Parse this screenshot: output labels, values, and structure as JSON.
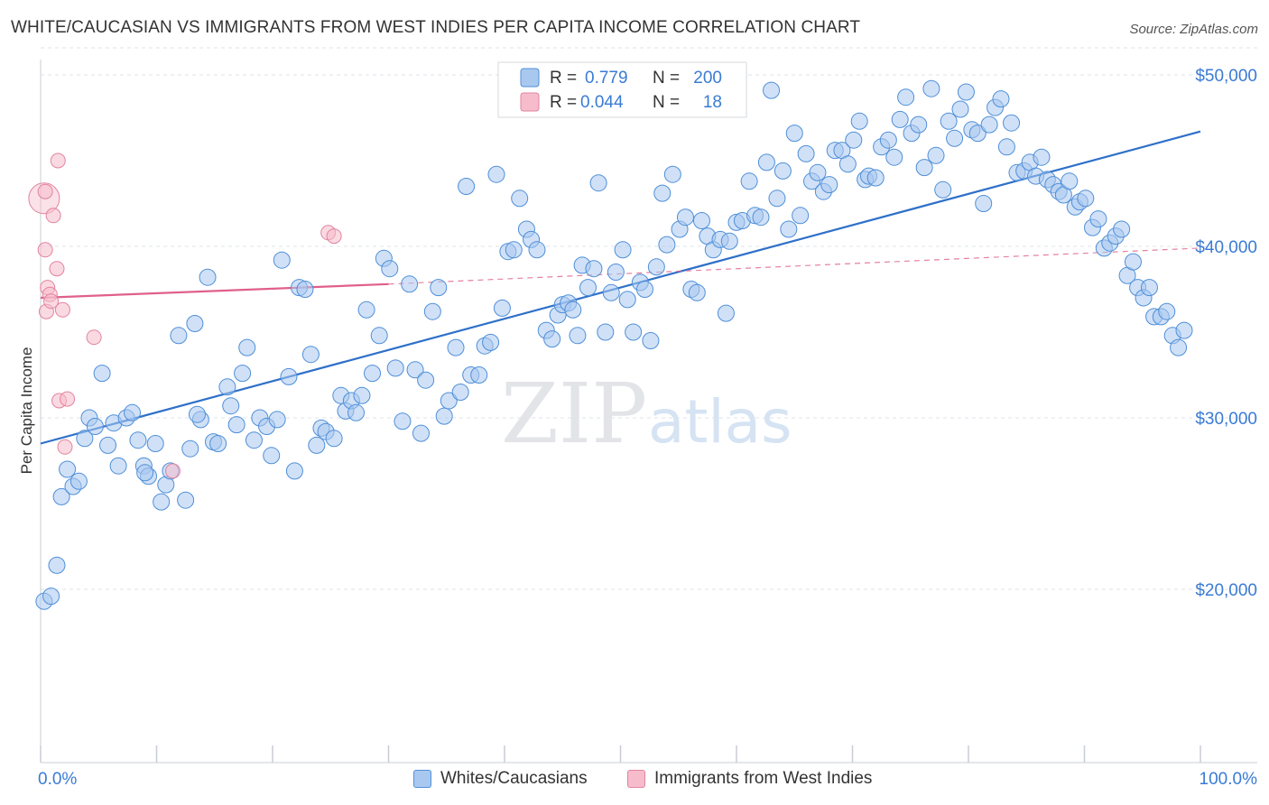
{
  "title": "WHITE/CAUCASIAN VS IMMIGRANTS FROM WEST INDIES PER CAPITA INCOME CORRELATION CHART",
  "source": "Source: ZipAtlas.com",
  "watermark": {
    "zip": "ZIP",
    "atlas": "atlas"
  },
  "colors": {
    "blue_fill": "#a9c8f0",
    "blue_stroke": "#4f8fd8",
    "blue_line": "#2e70c9",
    "pink_fill": "#f6bccb",
    "pink_stroke": "#e283a0",
    "pink_line": "#e0608a",
    "axis_label": "#3a7bd5",
    "grid": "#dde3ea"
  },
  "legend": {
    "rows": [
      {
        "r_label": "R =",
        "r_value": "0.779",
        "n_label": "N =",
        "n_value": "200",
        "series": "blue"
      },
      {
        "r_label": "R =",
        "r_value": "0.044",
        "n_label": "N =",
        "n_value": "18",
        "series": "pink"
      }
    ]
  },
  "bottom_legend": [
    {
      "label": "Whites/Caucasians",
      "series": "blue"
    },
    {
      "label": "Immigrants from West Indies",
      "series": "pink"
    }
  ],
  "chart_data": {
    "type": "scatter",
    "xlabel": "",
    "ylabel": "Per Capita Income",
    "xlim": [
      0,
      100
    ],
    "ylim": [
      10000,
      52000
    ],
    "x_tick_labels": [
      "0.0%",
      "100.0%"
    ],
    "y_ticks": [
      {
        "value": 20000,
        "label": "$20,000"
      },
      {
        "value": 30000,
        "label": "$30,000"
      },
      {
        "value": 40000,
        "label": "$40,000"
      },
      {
        "value": 50000,
        "label": "$50,000"
      }
    ],
    "grid": true,
    "series": [
      {
        "name": "Whites/Caucasians",
        "color": "blue",
        "trend": {
          "x1": 0,
          "y1": 28500,
          "x2": 100,
          "y2": 46700
        },
        "points": [
          [
            0.3,
            19300
          ],
          [
            0.9,
            19600
          ],
          [
            1.4,
            21400
          ],
          [
            1.8,
            25400
          ],
          [
            2.3,
            27000
          ],
          [
            2.8,
            26000
          ],
          [
            3.3,
            26300
          ],
          [
            3.8,
            28800
          ],
          [
            4.2,
            30000
          ],
          [
            4.7,
            29500
          ],
          [
            5.3,
            32600
          ],
          [
            5.8,
            28400
          ],
          [
            6.3,
            29700
          ],
          [
            6.7,
            27200
          ],
          [
            7.4,
            30000
          ],
          [
            7.9,
            30300
          ],
          [
            8.4,
            28700
          ],
          [
            8.9,
            27200
          ],
          [
            9.3,
            26600
          ],
          [
            9.9,
            28500
          ],
          [
            10.4,
            25100
          ],
          [
            10.8,
            26100
          ],
          [
            11.2,
            26900
          ],
          [
            11.9,
            34800
          ],
          [
            12.5,
            25200
          ],
          [
            12.9,
            28200
          ],
          [
            13.3,
            35500
          ],
          [
            13.8,
            29900
          ],
          [
            14.4,
            38200
          ],
          [
            14.9,
            28600
          ],
          [
            15.3,
            28500
          ],
          [
            16.1,
            31800
          ],
          [
            16.4,
            30700
          ],
          [
            16.9,
            29600
          ],
          [
            17.4,
            32600
          ],
          [
            17.8,
            34100
          ],
          [
            18.4,
            28700
          ],
          [
            18.9,
            30000
          ],
          [
            19.5,
            29500
          ],
          [
            19.9,
            27800
          ],
          [
            20.4,
            29900
          ],
          [
            20.8,
            39200
          ],
          [
            21.4,
            32400
          ],
          [
            21.9,
            26900
          ],
          [
            22.3,
            37600
          ],
          [
            22.8,
            37500
          ],
          [
            23.3,
            33700
          ],
          [
            23.8,
            28400
          ],
          [
            24.2,
            29400
          ],
          [
            24.6,
            29200
          ],
          [
            25.3,
            28800
          ],
          [
            25.9,
            31300
          ],
          [
            26.3,
            30400
          ],
          [
            26.8,
            31000
          ],
          [
            27.2,
            30300
          ],
          [
            27.7,
            31300
          ],
          [
            28.1,
            36300
          ],
          [
            28.6,
            32600
          ],
          [
            29.2,
            34800
          ],
          [
            29.6,
            39300
          ],
          [
            30.1,
            38700
          ],
          [
            30.6,
            32900
          ],
          [
            31.2,
            29800
          ],
          [
            31.8,
            37800
          ],
          [
            32.3,
            32800
          ],
          [
            32.8,
            29100
          ],
          [
            33.2,
            32200
          ],
          [
            33.8,
            36200
          ],
          [
            34.3,
            37600
          ],
          [
            34.8,
            30100
          ],
          [
            35.2,
            31000
          ],
          [
            35.8,
            34100
          ],
          [
            36.2,
            31500
          ],
          [
            36.7,
            43500
          ],
          [
            37.1,
            32500
          ],
          [
            37.8,
            32500
          ],
          [
            38.3,
            34200
          ],
          [
            38.8,
            34400
          ],
          [
            39.3,
            44200
          ],
          [
            39.8,
            36400
          ],
          [
            40.3,
            39700
          ],
          [
            40.8,
            39800
          ],
          [
            41.3,
            42800
          ],
          [
            41.9,
            41000
          ],
          [
            42.3,
            40400
          ],
          [
            42.8,
            39800
          ],
          [
            43.6,
            35100
          ],
          [
            44.1,
            34600
          ],
          [
            44.6,
            36000
          ],
          [
            45.0,
            36600
          ],
          [
            45.5,
            36700
          ],
          [
            45.9,
            36300
          ],
          [
            46.3,
            34800
          ],
          [
            46.7,
            38900
          ],
          [
            47.2,
            37600
          ],
          [
            47.7,
            38700
          ],
          [
            48.1,
            43700
          ],
          [
            48.7,
            35000
          ],
          [
            49.2,
            37300
          ],
          [
            49.6,
            38500
          ],
          [
            50.2,
            39800
          ],
          [
            50.6,
            36900
          ],
          [
            51.1,
            35000
          ],
          [
            51.7,
            37900
          ],
          [
            52.1,
            37500
          ],
          [
            52.6,
            34500
          ],
          [
            53.1,
            38800
          ],
          [
            53.6,
            43100
          ],
          [
            54.0,
            40100
          ],
          [
            54.5,
            44200
          ],
          [
            55.1,
            41000
          ],
          [
            55.6,
            41700
          ],
          [
            56.1,
            37500
          ],
          [
            56.6,
            37300
          ],
          [
            57.0,
            41500
          ],
          [
            57.5,
            40600
          ],
          [
            58.0,
            39800
          ],
          [
            58.6,
            40400
          ],
          [
            59.1,
            36100
          ],
          [
            59.4,
            40300
          ],
          [
            60.0,
            41400
          ],
          [
            60.5,
            41500
          ],
          [
            61.1,
            43800
          ],
          [
            61.6,
            41800
          ],
          [
            62.1,
            41700
          ],
          [
            62.6,
            44900
          ],
          [
            63.0,
            49100
          ],
          [
            63.5,
            42800
          ],
          [
            64.0,
            44400
          ],
          [
            64.5,
            41000
          ],
          [
            65.0,
            46600
          ],
          [
            65.5,
            41800
          ],
          [
            66.0,
            45400
          ],
          [
            66.5,
            43800
          ],
          [
            67.0,
            44300
          ],
          [
            67.5,
            43200
          ],
          [
            68.0,
            43600
          ],
          [
            68.5,
            45600
          ],
          [
            69.1,
            45600
          ],
          [
            69.6,
            44800
          ],
          [
            70.1,
            46200
          ],
          [
            70.6,
            47300
          ],
          [
            71.1,
            43900
          ],
          [
            71.4,
            44100
          ],
          [
            72.0,
            44000
          ],
          [
            72.5,
            45800
          ],
          [
            73.1,
            46200
          ],
          [
            73.6,
            45200
          ],
          [
            74.1,
            47400
          ],
          [
            74.6,
            48700
          ],
          [
            75.1,
            46600
          ],
          [
            75.7,
            47100
          ],
          [
            76.2,
            44600
          ],
          [
            76.8,
            49200
          ],
          [
            77.2,
            45300
          ],
          [
            77.8,
            43300
          ],
          [
            78.3,
            47300
          ],
          [
            78.8,
            46300
          ],
          [
            79.3,
            48000
          ],
          [
            79.8,
            49000
          ],
          [
            80.3,
            46800
          ],
          [
            80.8,
            46600
          ],
          [
            81.3,
            42500
          ],
          [
            81.8,
            47100
          ],
          [
            82.3,
            48100
          ],
          [
            82.8,
            48600
          ],
          [
            83.3,
            45800
          ],
          [
            83.7,
            47200
          ],
          [
            84.2,
            44300
          ],
          [
            84.8,
            44400
          ],
          [
            85.3,
            44900
          ],
          [
            85.8,
            44100
          ],
          [
            86.3,
            45200
          ],
          [
            86.8,
            43900
          ],
          [
            87.3,
            43600
          ],
          [
            87.8,
            43200
          ],
          [
            88.2,
            43000
          ],
          [
            88.7,
            43800
          ],
          [
            89.2,
            42300
          ],
          [
            89.6,
            42600
          ],
          [
            90.1,
            42800
          ],
          [
            90.7,
            41100
          ],
          [
            91.2,
            41600
          ],
          [
            91.7,
            39900
          ],
          [
            92.2,
            40200
          ],
          [
            92.7,
            40600
          ],
          [
            93.2,
            41000
          ],
          [
            93.7,
            38300
          ],
          [
            94.2,
            39100
          ],
          [
            94.6,
            37600
          ],
          [
            95.1,
            37000
          ],
          [
            95.6,
            37600
          ],
          [
            96.0,
            35900
          ],
          [
            96.6,
            35900
          ],
          [
            97.1,
            36200
          ],
          [
            97.6,
            34800
          ],
          [
            98.1,
            34100
          ],
          [
            98.6,
            35100
          ],
          [
            13.5,
            30200
          ],
          [
            9.0,
            26800
          ]
        ]
      },
      {
        "name": "Immigrants from West Indies",
        "color": "pink",
        "trend": {
          "x1": 0,
          "y1": 37000,
          "x2": 30,
          "y2": 37800,
          "dash_to": {
            "x": 100,
            "y": 39900
          }
        },
        "points": [
          [
            0.3,
            42800
          ],
          [
            0.4,
            43200
          ],
          [
            0.4,
            39800
          ],
          [
            0.5,
            36200
          ],
          [
            0.6,
            37600
          ],
          [
            0.8,
            37200
          ],
          [
            0.9,
            36800
          ],
          [
            1.1,
            41800
          ],
          [
            1.4,
            38700
          ],
          [
            1.5,
            45000
          ],
          [
            1.9,
            36300
          ],
          [
            1.6,
            31000
          ],
          [
            2.3,
            31100
          ],
          [
            2.1,
            28300
          ],
          [
            4.6,
            34700
          ],
          [
            11.4,
            26900
          ],
          [
            24.8,
            40800
          ],
          [
            25.3,
            40600
          ]
        ]
      }
    ]
  }
}
